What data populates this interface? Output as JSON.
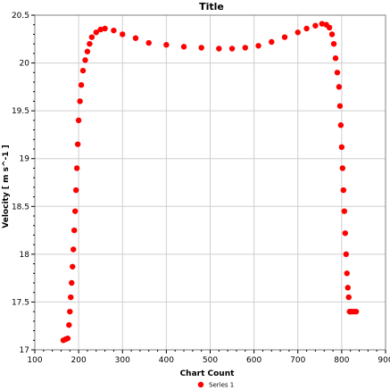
{
  "chart_data": {
    "type": "scatter",
    "title": "Title",
    "xlabel": "Chart Count",
    "ylabel": "Velocity [ m s^-1 ]",
    "xlim": [
      100,
      900
    ],
    "ylim": [
      17,
      20.5
    ],
    "xticks": [
      100,
      200,
      300,
      400,
      500,
      600,
      700,
      800,
      900
    ],
    "xtick_labels": [
      "100",
      "200",
      "300",
      "400",
      "500",
      "600",
      "700",
      "800",
      "900"
    ],
    "yticks": [
      17,
      17.5,
      18,
      18.5,
      19,
      19.5,
      20,
      20.5
    ],
    "ytick_labels": [
      "17",
      "17.5",
      "18",
      "18.5",
      "19",
      "19.5",
      "20",
      "20.5"
    ],
    "grid": true,
    "legend_position": "bottom-center",
    "series": [
      {
        "name": "Series 1",
        "color": "#ff0000",
        "marker": "circle",
        "x": [
          165,
          170,
          175,
          178,
          180,
          182,
          184,
          186,
          188,
          190,
          192,
          194,
          196,
          198,
          200,
          203,
          206,
          210,
          215,
          220,
          225,
          230,
          240,
          250,
          260,
          280,
          300,
          330,
          360,
          400,
          440,
          480,
          520,
          550,
          580,
          610,
          640,
          670,
          700,
          720,
          740,
          755,
          765,
          772,
          778,
          782,
          786,
          790,
          794,
          796,
          798,
          800,
          802,
          804,
          806,
          808,
          810,
          812,
          814,
          816,
          818,
          820,
          823,
          828,
          833
        ],
        "y": [
          17.1,
          17.11,
          17.12,
          17.26,
          17.4,
          17.55,
          17.7,
          17.87,
          18.05,
          18.25,
          18.45,
          18.67,
          18.9,
          19.15,
          19.4,
          19.6,
          19.77,
          19.92,
          20.03,
          20.12,
          20.2,
          20.27,
          20.32,
          20.35,
          20.36,
          20.34,
          20.3,
          20.26,
          20.21,
          20.19,
          20.17,
          20.16,
          20.15,
          20.15,
          20.16,
          20.18,
          20.22,
          20.27,
          20.32,
          20.36,
          20.39,
          20.41,
          20.4,
          20.37,
          20.3,
          20.2,
          20.05,
          19.9,
          19.75,
          19.55,
          19.35,
          19.12,
          18.9,
          18.67,
          18.45,
          18.22,
          18.0,
          17.8,
          17.65,
          17.55,
          17.4,
          17.4,
          17.4,
          17.4,
          17.4
        ]
      }
    ]
  }
}
